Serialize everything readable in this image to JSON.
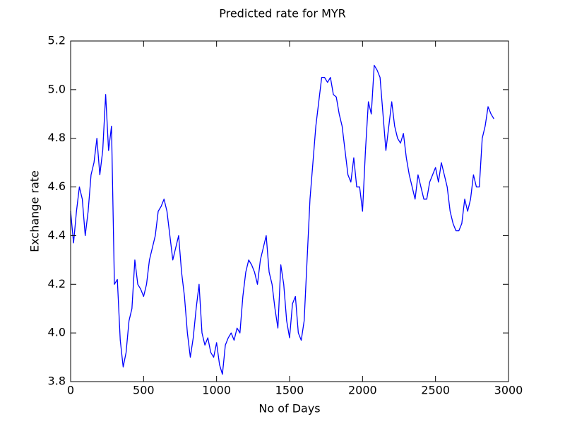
{
  "chart_data": {
    "type": "line",
    "title": "Predicted rate for MYR",
    "x_label": "No of Days",
    "y_label": "Exchange rate",
    "x": [
      0,
      20,
      40,
      60,
      80,
      100,
      120,
      140,
      160,
      180,
      200,
      220,
      240,
      260,
      280,
      300,
      320,
      340,
      360,
      380,
      400,
      420,
      440,
      460,
      480,
      500,
      520,
      540,
      560,
      580,
      600,
      620,
      640,
      660,
      680,
      700,
      720,
      740,
      760,
      780,
      800,
      820,
      840,
      860,
      880,
      900,
      920,
      940,
      960,
      980,
      1000,
      1020,
      1040,
      1060,
      1080,
      1100,
      1120,
      1140,
      1160,
      1180,
      1200,
      1220,
      1240,
      1260,
      1280,
      1300,
      1320,
      1340,
      1360,
      1380,
      1400,
      1420,
      1440,
      1460,
      1480,
      1500,
      1520,
      1540,
      1560,
      1580,
      1600,
      1620,
      1640,
      1660,
      1680,
      1700,
      1720,
      1740,
      1760,
      1780,
      1800,
      1820,
      1840,
      1860,
      1880,
      1900,
      1920,
      1940,
      1960,
      1980,
      2000,
      2020,
      2040,
      2060,
      2080,
      2100,
      2120,
      2140,
      2160,
      2180,
      2200,
      2220,
      2240,
      2260,
      2280,
      2300,
      2320,
      2340,
      2360,
      2380,
      2400,
      2420,
      2440,
      2460,
      2480,
      2500,
      2520,
      2540,
      2560,
      2580,
      2600,
      2620,
      2640,
      2660,
      2680,
      2700,
      2720,
      2740,
      2760,
      2780,
      2800,
      2820,
      2840,
      2860,
      2880,
      2900
    ],
    "series": [
      {
        "name": "MYR",
        "color": "#0000ff",
        "values": [
          4.5,
          4.37,
          4.5,
          4.6,
          4.55,
          4.4,
          4.5,
          4.65,
          4.7,
          4.8,
          4.65,
          4.75,
          4.98,
          4.75,
          4.85,
          4.2,
          4.22,
          3.97,
          3.86,
          3.92,
          4.05,
          4.1,
          4.3,
          4.2,
          4.18,
          4.15,
          4.2,
          4.3,
          4.35,
          4.4,
          4.5,
          4.52,
          4.55,
          4.5,
          4.4,
          4.3,
          4.35,
          4.4,
          4.25,
          4.15,
          4.0,
          3.9,
          3.98,
          4.1,
          4.2,
          4.0,
          3.95,
          3.98,
          3.92,
          3.9,
          3.96,
          3.87,
          3.83,
          3.95,
          3.98,
          4.0,
          3.97,
          4.02,
          4.0,
          4.15,
          4.25,
          4.3,
          4.28,
          4.25,
          4.2,
          4.3,
          4.35,
          4.4,
          4.25,
          4.2,
          4.1,
          4.02,
          4.28,
          4.2,
          4.05,
          3.98,
          4.12,
          4.15,
          4.0,
          3.97,
          4.05,
          4.3,
          4.55,
          4.7,
          4.85,
          4.95,
          5.05,
          5.05,
          5.03,
          5.05,
          4.98,
          4.97,
          4.9,
          4.85,
          4.75,
          4.65,
          4.62,
          4.72,
          4.6,
          4.6,
          4.5,
          4.75,
          4.95,
          4.9,
          5.1,
          5.08,
          5.05,
          4.9,
          4.75,
          4.85,
          4.95,
          4.85,
          4.8,
          4.78,
          4.82,
          4.72,
          4.65,
          4.6,
          4.55,
          4.65,
          4.6,
          4.55,
          4.55,
          4.62,
          4.65,
          4.68,
          4.62,
          4.7,
          4.65,
          4.6,
          4.5,
          4.45,
          4.42,
          4.42,
          4.45,
          4.55,
          4.5,
          4.55,
          4.65,
          4.6,
          4.6,
          4.8,
          4.85,
          4.93,
          4.9,
          4.88
        ]
      }
    ],
    "xlim": [
      0,
      3000
    ],
    "xticks": [
      0,
      500,
      1000,
      1500,
      2000,
      2500,
      3000
    ],
    "ylim": [
      3.8,
      5.2
    ],
    "yticks": [
      3.8,
      {
        "value": 4,
        "label": "4.0"
      },
      4.2,
      4.4,
      4.6,
      4.8,
      {
        "value": 5,
        "label": "5.0"
      },
      5.2
    ],
    "grid": false
  }
}
